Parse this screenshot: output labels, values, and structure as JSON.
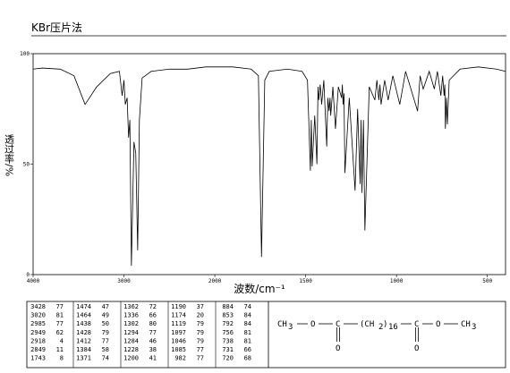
{
  "chart_data": {
    "type": "line",
    "title": "KBr压片法",
    "x_label": "波数/cm⁻¹",
    "y_label": "透过率/%",
    "xlim": [
      4000,
      400
    ],
    "x_scale_break": 2000,
    "ylim": [
      0,
      100
    ],
    "xticks": [
      4000,
      3000,
      2000,
      1500,
      1000,
      500
    ],
    "yticks": [
      0,
      50,
      100
    ],
    "color": "#000000",
    "x": [
      4000,
      3900,
      3700,
      3550,
      3428,
      3300,
      3150,
      3050,
      3020,
      3000,
      2985,
      2965,
      2949,
      2935,
      2918,
      2890,
      2870,
      2849,
      2830,
      2800,
      2700,
      2500,
      2300,
      2100,
      2000,
      1900,
      1800,
      1760,
      1743,
      1725,
      1700,
      1600,
      1520,
      1490,
      1474,
      1469,
      1464,
      1450,
      1438,
      1432,
      1428,
      1420,
      1412,
      1400,
      1384,
      1378,
      1371,
      1366,
      1362,
      1350,
      1336,
      1320,
      1302,
      1298,
      1294,
      1289,
      1284,
      1260,
      1228,
      1214,
      1200,
      1195,
      1190,
      1182,
      1174,
      1150,
      1119,
      1108,
      1097,
      1091,
      1085,
      1065,
      1046,
      1020,
      982,
      950,
      884,
      870,
      853,
      820,
      792,
      775,
      756,
      746,
      738,
      734,
      731,
      725,
      720,
      710,
      650,
      550,
      450,
      400
    ],
    "values": [
      93,
      93.5,
      93,
      90,
      77,
      85,
      91,
      92,
      81,
      88,
      77,
      80,
      62,
      70,
      4,
      60,
      55,
      11,
      70,
      89,
      92,
      93,
      93,
      94,
      94,
      94,
      93,
      90,
      8,
      88,
      92,
      93,
      92,
      88,
      47,
      70,
      49,
      72,
      50,
      85,
      79,
      86,
      77,
      88,
      58,
      80,
      74,
      80,
      72,
      85,
      66,
      85,
      80,
      86,
      77,
      82,
      46,
      80,
      38,
      75,
      41,
      70,
      37,
      70,
      20,
      85,
      79,
      88,
      79,
      86,
      77,
      88,
      79,
      90,
      77,
      92,
      74,
      90,
      84,
      92,
      84,
      92,
      81,
      90,
      81,
      86,
      66,
      80,
      68,
      88,
      93,
      94,
      93,
      92
    ]
  },
  "peak_table": {
    "rows": [
      [
        3428,
        77
      ],
      [
        3020,
        81
      ],
      [
        2985,
        77
      ],
      [
        2949,
        62
      ],
      [
        2918,
        4
      ],
      [
        2849,
        11
      ],
      [
        1743,
        8
      ],
      [
        1474,
        47
      ],
      [
        1464,
        49
      ],
      [
        1438,
        50
      ],
      [
        1428,
        79
      ],
      [
        1412,
        77
      ],
      [
        1384,
        58
      ],
      [
        1371,
        74
      ],
      [
        1362,
        72
      ],
      [
        1336,
        66
      ],
      [
        1302,
        80
      ],
      [
        1294,
        77
      ],
      [
        1284,
        46
      ],
      [
        1228,
        38
      ],
      [
        1200,
        41
      ],
      [
        1190,
        37
      ],
      [
        1174,
        20
      ],
      [
        1119,
        79
      ],
      [
        1097,
        79
      ],
      [
        1046,
        79
      ],
      [
        1085,
        77
      ],
      [
        982,
        77
      ],
      [
        884,
        74
      ],
      [
        853,
        84
      ],
      [
        792,
        84
      ],
      [
        756,
        81
      ],
      [
        738,
        81
      ],
      [
        731,
        66
      ],
      [
        720,
        68
      ]
    ]
  },
  "structure": {
    "atoms": [
      "CH",
      "3",
      "O",
      "C",
      "(CH",
      "2",
      ")",
      "16",
      "C",
      "O",
      "CH",
      "3"
    ],
    "carbonyl_oxygens": [
      "O",
      "O"
    ]
  }
}
